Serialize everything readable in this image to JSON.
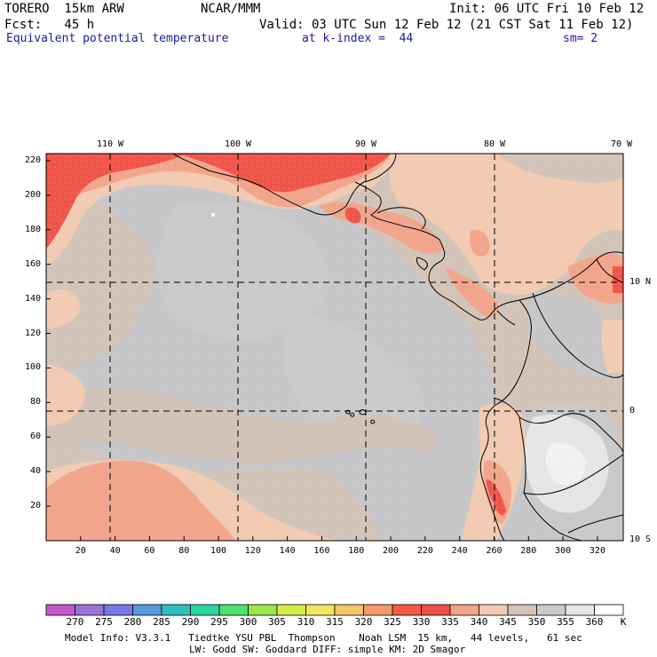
{
  "header": {
    "model": "TORERO  15km ARW",
    "center": "NCAR/MMM",
    "init": "Init: 06 UTC Fri 10 Feb 12",
    "fcst": "Fcst:   45 h",
    "valid": "Valid: 03 UTC Sun 12 Feb 12 (21 CST Sat 11 Feb 12)",
    "field": "Equivalent potential temperature",
    "level": "at k-index =  44",
    "smooth": "sm= 2"
  },
  "map": {
    "top_labels": [
      "110 W",
      "100 W",
      "90 W",
      "80 W",
      "70 W"
    ],
    "right_labels": [
      "10 N",
      "0",
      "10 S"
    ],
    "left_ticks": [
      "220",
      "200",
      "180",
      "160",
      "140",
      "120",
      "100",
      "80",
      "60",
      "40",
      "20"
    ],
    "bottom_ticks": [
      "20",
      "40",
      "60",
      "80",
      "100",
      "120",
      "140",
      "160",
      "180",
      "200",
      "220",
      "240",
      "260",
      "280",
      "300",
      "320"
    ]
  },
  "colorbar": {
    "labels": [
      "270",
      "275",
      "280",
      "285",
      "290",
      "295",
      "300",
      "305",
      "310",
      "315",
      "320",
      "325",
      "330",
      "335",
      "340",
      "345",
      "350",
      "355",
      "360"
    ],
    "unit": "K",
    "colors": [
      "#c45ac8",
      "#9a72d4",
      "#7878e6",
      "#5a96dc",
      "#2ec0c0",
      "#2cd6a0",
      "#4ee070",
      "#9ae64a",
      "#d4ec4a",
      "#f4e65a",
      "#f4c66a",
      "#f49a6a",
      "#f45a46",
      "#f0504a",
      "#f4a288",
      "#f4cab4",
      "#d2c2b8",
      "#cacaca",
      "#e6e6e6",
      "#ffffff"
    ]
  },
  "footer": {
    "line1": "Model Info: V3.3.1   Tiedtke YSU PBL  Thompson    Noah LSM  15 km,   44 levels,   61 sec",
    "line2": "LW: Godd SW: Goddard DIFF: simple KM: 2D Smagor"
  }
}
